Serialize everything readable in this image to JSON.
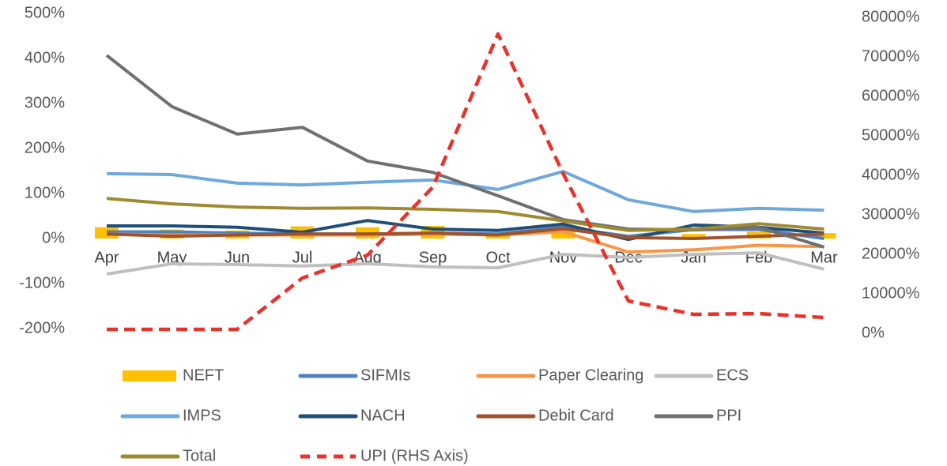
{
  "chart_data": {
    "type": "line",
    "categories": [
      "Apr",
      "May",
      "Jun",
      "Jul",
      "Aug",
      "Sep",
      "Oct",
      "Nov",
      "Dec",
      "Jan",
      "Feb",
      "Mar"
    ],
    "ylim": [
      -200,
      500
    ],
    "yticks": [
      {
        "value": -200,
        "label": "-200%"
      },
      {
        "value": -100,
        "label": "-100%"
      },
      {
        "value": 0,
        "label": "0%"
      },
      {
        "value": 100,
        "label": "100%"
      },
      {
        "value": 200,
        "label": "200%"
      },
      {
        "value": 300,
        "label": "300%"
      },
      {
        "value": 400,
        "label": "400%"
      },
      {
        "value": 500,
        "label": "500%"
      }
    ],
    "y2lim": [
      0,
      80000
    ],
    "y2ticks": [
      {
        "value": 0,
        "label": "0%"
      },
      {
        "value": 10000,
        "label": "10000%"
      },
      {
        "value": 20000,
        "label": "20000%"
      },
      {
        "value": 30000,
        "label": "30000%"
      },
      {
        "value": 40000,
        "label": "40000%"
      },
      {
        "value": 50000,
        "label": "50000%"
      },
      {
        "value": 60000,
        "label": "60000%"
      },
      {
        "value": 70000,
        "label": "70000%"
      },
      {
        "value": 80000,
        "label": "80000%"
      }
    ],
    "series": [
      {
        "name": "NEFT",
        "type": "bar",
        "color": "#ffc000",
        "values": [
          25,
          20,
          18,
          27,
          25,
          28,
          12,
          20,
          5,
          10,
          15,
          12
        ]
      },
      {
        "name": "SIFMIs",
        "color": "#4f81bd",
        "values": [
          15,
          15,
          12,
          10,
          10,
          12,
          10,
          25,
          5,
          20,
          20,
          0
        ]
      },
      {
        "name": "Paper Clearing",
        "color": "#f79646",
        "values": [
          10,
          8,
          8,
          8,
          8,
          10,
          8,
          15,
          -30,
          -25,
          -15,
          -18
        ]
      },
      {
        "name": "ECS",
        "color": "#bfbfbf",
        "values": [
          -79,
          -56,
          -58,
          -61,
          -56,
          -63,
          -65,
          -35,
          -42,
          -35,
          -32,
          -68
        ]
      },
      {
        "name": "IMPS",
        "color": "#6fa8dc",
        "values": [
          144,
          142,
          123,
          119,
          125,
          130,
          109,
          149,
          86,
          60,
          67,
          63
        ]
      },
      {
        "name": "NACH",
        "color": "#1f4e79",
        "values": [
          28,
          28,
          25,
          14,
          40,
          21,
          18,
          32,
          -2,
          30,
          25,
          12
        ]
      },
      {
        "name": "Debit Card",
        "color": "#a0522d",
        "values": [
          10,
          5,
          8,
          10,
          10,
          12,
          8,
          22,
          2,
          0,
          5,
          10
        ]
      },
      {
        "name": "PPI",
        "color": "#707070",
        "values": [
          407,
          293,
          232,
          247,
          172,
          147,
          95,
          42,
          21,
          19,
          25,
          -19
        ]
      },
      {
        "name": "Total",
        "color": "#a08a2f",
        "values": [
          89,
          77,
          70,
          67,
          68,
          65,
          60,
          39,
          18,
          21,
          33,
          21
        ]
      },
      {
        "name": "UPI (RHS Axis)",
        "color": "#e8322a",
        "dashed": true,
        "axis": "y2",
        "values": [
          1000,
          1000,
          1000,
          14000,
          19800,
          37000,
          75800,
          40400,
          8200,
          4800,
          5000,
          4000
        ]
      }
    ]
  }
}
